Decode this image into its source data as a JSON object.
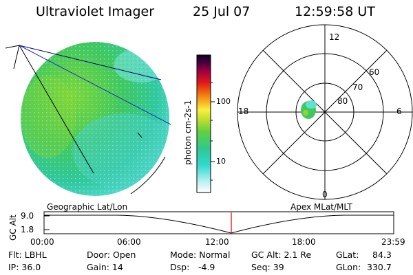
{
  "header": {
    "title": "Ultraviolet Imager",
    "date": "25 Jul 07",
    "time": "12:59:58 UT"
  },
  "colorbar": {
    "unit_label": "photon cm-2s-1",
    "ticks": [
      "100",
      "10"
    ]
  },
  "polar_plot": {
    "mlt_labels": {
      "top": "12",
      "left": "18",
      "right": "6",
      "bottom": "0"
    },
    "lat_labels": [
      "60",
      "70",
      "80"
    ]
  },
  "timeline": {
    "left_title": "Geographic Lat/Lon",
    "right_title": "Apex MLat/MLT",
    "ylabel": "GC Alt",
    "y_ticks": [
      "9.0",
      "1.8"
    ],
    "x_ticks": [
      "00:00",
      "06:00",
      "12:00",
      "18:00",
      "23:59"
    ],
    "marker_color": "#e00000"
  },
  "info": {
    "flt": "Flt: LBHL",
    "ip": "IP: 36.0",
    "door": "Door: Open",
    "gain": "Gain: 14",
    "mode": "Mode: Normal",
    "dsp": "Dsp:",
    "dsp_val": "-4.9",
    "gcalt": "GC Alt: 2.1 Re",
    "seq": "Seq: 39",
    "glat_label": "GLat:",
    "glat_val": "84.3",
    "glon_label": "GLon:",
    "glon_val": "330.7"
  }
}
